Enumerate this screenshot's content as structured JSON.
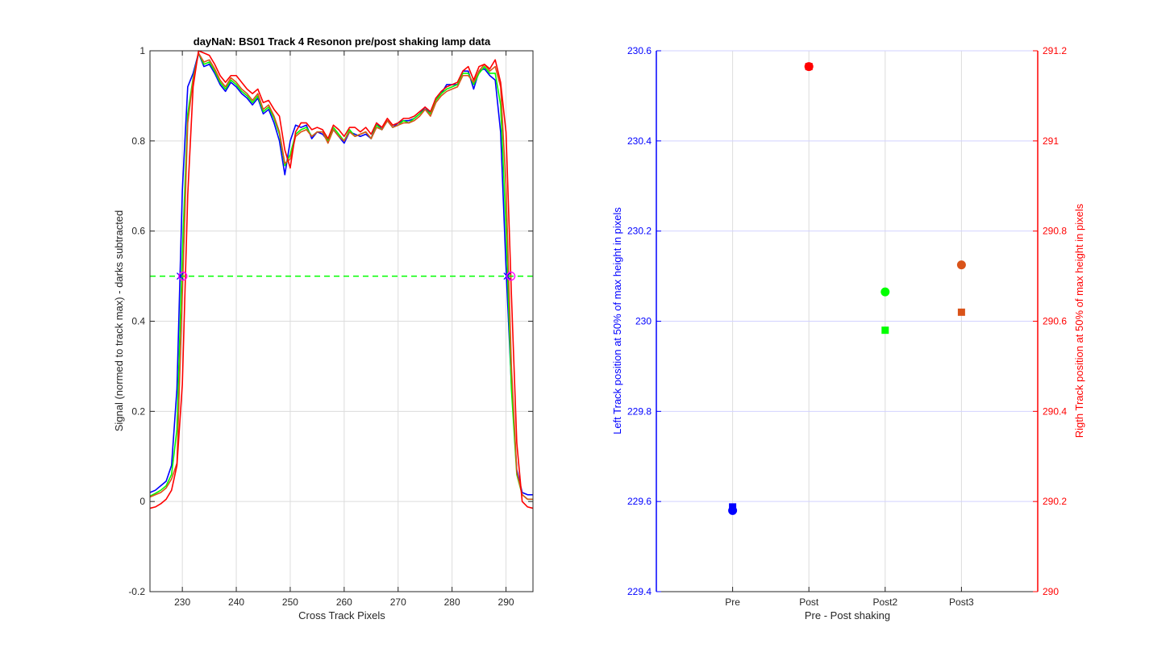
{
  "chart_data": [
    {
      "type": "line",
      "title": "dayNaN: BS01  Track 4 Resonon pre/post shaking lamp data",
      "xlabel": "Cross Track Pixels",
      "ylabel": "Signal (normed to track max) - darks subtracted",
      "xlim": [
        224,
        295
      ],
      "ylim": [
        -0.2,
        1
      ],
      "xticks": [
        230,
        240,
        250,
        260,
        270,
        280,
        290
      ],
      "yticks": [
        -0.2,
        0,
        0.2,
        0.4,
        0.6,
        0.8,
        1
      ],
      "grid": true,
      "colors": {
        "pre": "#0000ff",
        "post": "#ff0000",
        "post2": "#00ff00",
        "post3": "#d95319",
        "half_max": "#00ff00"
      },
      "x": [
        224,
        225,
        226,
        227,
        228,
        229,
        230,
        231,
        232,
        233,
        234,
        235,
        236,
        237,
        238,
        239,
        240,
        241,
        242,
        243,
        244,
        245,
        246,
        247,
        248,
        249,
        250,
        251,
        252,
        253,
        254,
        255,
        256,
        257,
        258,
        259,
        260,
        261,
        262,
        263,
        264,
        265,
        266,
        267,
        268,
        269,
        270,
        271,
        272,
        273,
        274,
        275,
        276,
        277,
        278,
        279,
        280,
        281,
        282,
        283,
        284,
        285,
        286,
        287,
        288,
        289,
        290,
        291,
        292,
        293,
        294,
        295
      ],
      "series": [
        {
          "name": "Pre",
          "values": [
            0.02,
            0.025,
            0.035,
            0.045,
            0.08,
            0.25,
            0.69,
            0.92,
            0.95,
            0.995,
            0.965,
            0.97,
            0.95,
            0.925,
            0.91,
            0.93,
            0.92,
            0.905,
            0.895,
            0.88,
            0.895,
            0.86,
            0.87,
            0.84,
            0.8,
            0.725,
            0.8,
            0.835,
            0.83,
            0.835,
            0.805,
            0.82,
            0.815,
            0.8,
            0.825,
            0.81,
            0.795,
            0.82,
            0.815,
            0.81,
            0.815,
            0.805,
            0.84,
            0.825,
            0.845,
            0.83,
            0.84,
            0.845,
            0.845,
            0.85,
            0.86,
            0.875,
            0.86,
            0.895,
            0.905,
            0.925,
            0.925,
            0.925,
            0.955,
            0.955,
            0.915,
            0.955,
            0.96,
            0.945,
            0.935,
            0.82,
            0.52,
            0.26,
            0.07,
            0.02,
            0.015,
            0.015
          ]
        },
        {
          "name": "Post2",
          "values": [
            0.012,
            0.018,
            0.025,
            0.035,
            0.06,
            0.16,
            0.55,
            0.86,
            0.94,
            0.995,
            0.97,
            0.975,
            0.955,
            0.93,
            0.915,
            0.935,
            0.925,
            0.91,
            0.9,
            0.885,
            0.9,
            0.865,
            0.875,
            0.85,
            0.815,
            0.745,
            0.77,
            0.815,
            0.825,
            0.83,
            0.81,
            0.82,
            0.82,
            0.8,
            0.83,
            0.815,
            0.8,
            0.825,
            0.81,
            0.815,
            0.82,
            0.805,
            0.835,
            0.825,
            0.845,
            0.83,
            0.835,
            0.845,
            0.84,
            0.85,
            0.86,
            0.87,
            0.86,
            0.89,
            0.905,
            0.915,
            0.92,
            0.925,
            0.95,
            0.95,
            0.925,
            0.95,
            0.965,
            0.95,
            0.95,
            0.88,
            0.61,
            0.25,
            0.06,
            0.015,
            0.005,
            0.005
          ]
        },
        {
          "name": "Post3",
          "values": [
            0.01,
            0.015,
            0.02,
            0.03,
            0.05,
            0.085,
            0.46,
            0.84,
            0.935,
            0.995,
            0.975,
            0.98,
            0.96,
            0.935,
            0.92,
            0.94,
            0.93,
            0.915,
            0.905,
            0.89,
            0.905,
            0.87,
            0.88,
            0.855,
            0.82,
            0.75,
            0.76,
            0.81,
            0.82,
            0.825,
            0.81,
            0.82,
            0.82,
            0.795,
            0.825,
            0.81,
            0.8,
            0.82,
            0.81,
            0.815,
            0.82,
            0.805,
            0.83,
            0.825,
            0.845,
            0.83,
            0.835,
            0.84,
            0.84,
            0.845,
            0.855,
            0.87,
            0.855,
            0.885,
            0.9,
            0.91,
            0.915,
            0.92,
            0.945,
            0.945,
            0.93,
            0.955,
            0.97,
            0.955,
            0.965,
            0.92,
            0.7,
            0.3,
            0.065,
            0.015,
            0.005,
            0.005
          ]
        },
        {
          "name": "Post",
          "values": [
            -0.015,
            -0.012,
            -0.005,
            0.005,
            0.025,
            0.08,
            0.26,
            0.68,
            0.92,
            1.0,
            0.995,
            0.99,
            0.97,
            0.945,
            0.93,
            0.945,
            0.945,
            0.93,
            0.915,
            0.905,
            0.915,
            0.885,
            0.89,
            0.87,
            0.855,
            0.78,
            0.74,
            0.82,
            0.84,
            0.84,
            0.825,
            0.83,
            0.825,
            0.805,
            0.835,
            0.825,
            0.81,
            0.83,
            0.83,
            0.82,
            0.83,
            0.815,
            0.84,
            0.83,
            0.85,
            0.835,
            0.84,
            0.85,
            0.85,
            0.855,
            0.865,
            0.875,
            0.865,
            0.895,
            0.91,
            0.92,
            0.925,
            0.93,
            0.955,
            0.965,
            0.935,
            0.965,
            0.97,
            0.96,
            0.98,
            0.93,
            0.82,
            0.46,
            0.13,
            0.0,
            -0.012,
            -0.015
          ]
        }
      ],
      "half_max_line": {
        "y": 0.5,
        "style": "dashed"
      },
      "half_max_markers": [
        {
          "x": 229.6,
          "y": 0.5,
          "shape": "cross",
          "color": "#0000ff"
        },
        {
          "x": 230.1,
          "y": 0.5,
          "shape": "circle",
          "color": "#ff00ff"
        },
        {
          "x": 290.2,
          "y": 0.5,
          "shape": "cross",
          "color": "#0000ff"
        },
        {
          "x": 290.9,
          "y": 0.5,
          "shape": "circle",
          "color": "#ff00ff"
        }
      ]
    },
    {
      "type": "scatter",
      "xlabel": "Pre - Post shaking",
      "ylabel_left": "Left Track position at 50% of max height in pixels",
      "ylabel_right": "Rigth Track position at 50% of max height in pixels",
      "categories": [
        "Pre",
        "Post",
        "Post2",
        "Post3"
      ],
      "ylim_left": [
        229.4,
        230.6
      ],
      "ylim_right": [
        290,
        291.2
      ],
      "yticks_left": [
        "229.4",
        "229.6",
        "229.8",
        "230",
        "230.2",
        "230.4",
        "230.6"
      ],
      "yticks_right": [
        "290",
        "290.2",
        "290.4",
        "290.6",
        "290.8",
        "291",
        "291.2"
      ],
      "grid": true,
      "colors": {
        "left_axis": "#0000ff",
        "right_axis": "#ff0000",
        "grid": "#d2d2ff"
      },
      "left_points": [
        {
          "category": "Pre",
          "value": 229.588,
          "color": "#0000ff",
          "marker": "square"
        },
        {
          "category": "Post",
          "value": 230.565,
          "color": "#ff0000",
          "marker": "square"
        },
        {
          "category": "Post2",
          "value": 229.98,
          "color": "#00ff00",
          "marker": "square"
        },
        {
          "category": "Post3",
          "value": 230.02,
          "color": "#d95319",
          "marker": "square"
        }
      ],
      "right_points": [
        {
          "category": "Pre",
          "value": 290.18,
          "color": "#0000ff",
          "marker": "circle"
        },
        {
          "category": "Post",
          "value": 291.165,
          "color": "#ff0000",
          "marker": "circle"
        },
        {
          "category": "Post2",
          "value": 290.665,
          "color": "#00ff00",
          "marker": "circle"
        },
        {
          "category": "Post3",
          "value": 290.725,
          "color": "#d95319",
          "marker": "circle"
        }
      ]
    }
  ]
}
